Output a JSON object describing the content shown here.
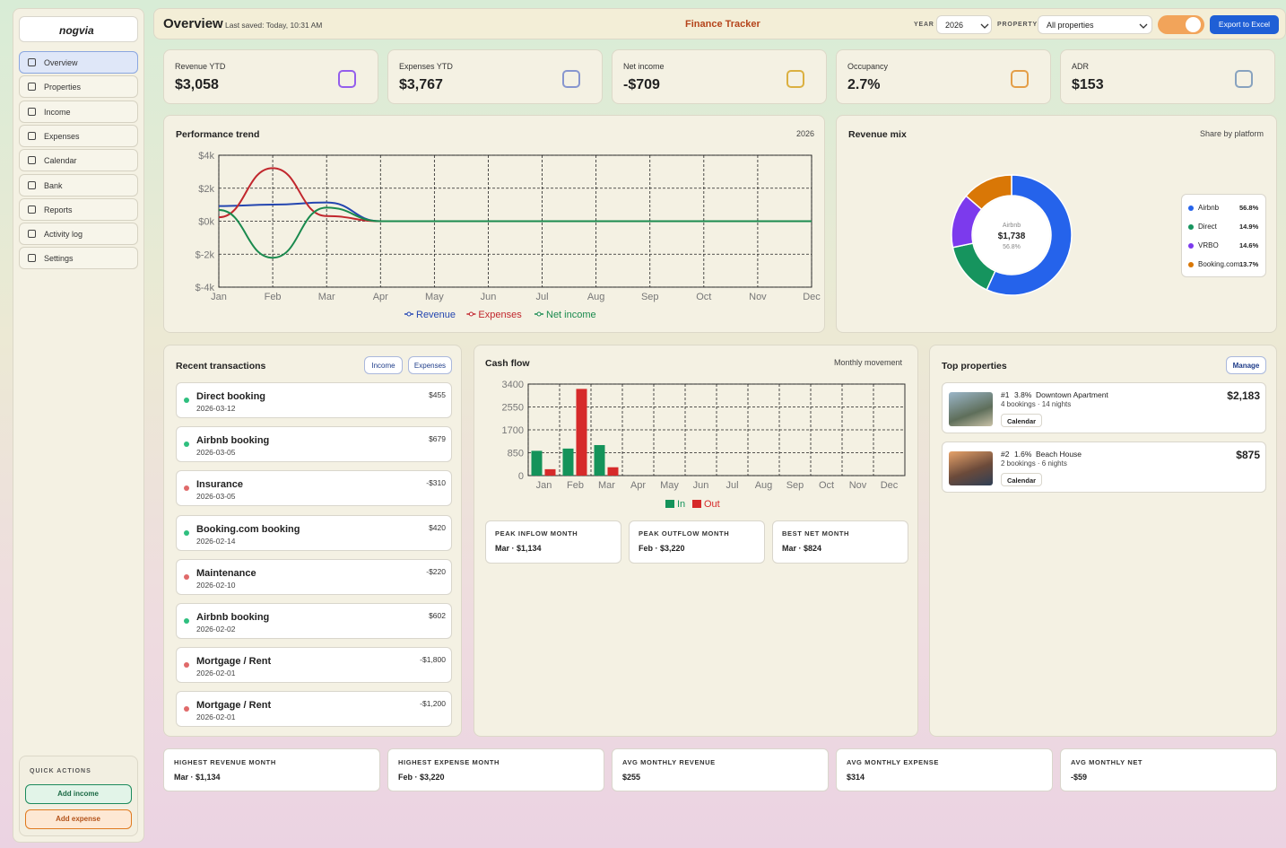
{
  "header": {
    "title": "Overview",
    "last_saved": "Last saved: Today, 10:31 AM",
    "app_name": "Finance Tracker",
    "year_label": "YEAR",
    "year": "2026",
    "property_label": "PROPERTY",
    "property": "All properties",
    "export": "Export to Excel"
  },
  "sidebar": {
    "logo": "nogvia",
    "nav": [
      "Overview",
      "Properties",
      "Income",
      "Expenses",
      "Calendar",
      "Bank",
      "Reports",
      "Activity log",
      "Settings"
    ],
    "quick_actions_title": "QUICK ACTIONS",
    "add_income": "Add income",
    "add_expense": "Add expense"
  },
  "kpis": [
    {
      "label": "Revenue YTD",
      "value": "$3,058"
    },
    {
      "label": "Expenses YTD",
      "value": "$3,767"
    },
    {
      "label": "Net income",
      "value": "-$709"
    },
    {
      "label": "Occupancy",
      "value": "2.7%"
    },
    {
      "label": "ADR",
      "value": "$153"
    }
  ],
  "chart_data": [
    {
      "type": "line",
      "title": "Performance trend",
      "subtitle": "2026",
      "categories": [
        "Jan",
        "Feb",
        "Mar",
        "Apr",
        "May",
        "Jun",
        "Jul",
        "Aug",
        "Sep",
        "Oct",
        "Nov",
        "Dec"
      ],
      "series": [
        {
          "name": "Revenue",
          "color": "#2446b0",
          "values": [
            920,
            1004,
            1134,
            0,
            0,
            0,
            0,
            0,
            0,
            0,
            0,
            0
          ]
        },
        {
          "name": "Expenses",
          "color": "#c1272d",
          "values": [
            237,
            3220,
            310,
            0,
            0,
            0,
            0,
            0,
            0,
            0,
            0,
            0
          ]
        },
        {
          "name": "Net income",
          "color": "#1a8a4e",
          "values": [
            683,
            -2216,
            824,
            0,
            0,
            0,
            0,
            0,
            0,
            0,
            0,
            0
          ]
        }
      ],
      "ylim": [
        -4000,
        4000
      ],
      "yticks": [
        {
          "value": -4000,
          "label": "$-4k"
        },
        {
          "value": -2000,
          "label": "$-2k"
        },
        {
          "value": 0,
          "label": "$0k"
        },
        {
          "value": 2000,
          "label": "$2k"
        },
        {
          "value": 4000,
          "label": "$4k"
        }
      ],
      "grid": true,
      "legend": "bottom"
    },
    {
      "type": "pie",
      "title": "Revenue mix",
      "subtitle": "Share by platform",
      "categories": [
        "Airbnb",
        "Direct",
        "VRBO",
        "Booking.com"
      ],
      "values": [
        56.8,
        14.9,
        14.6,
        13.7
      ],
      "value_labels": [
        "56.8%",
        "14.9%",
        "14.6%",
        "13.7%"
      ],
      "colors": [
        "#2563eb",
        "#16945e",
        "#7c3aed",
        "#d97706"
      ],
      "center": {
        "label": "Airbnb",
        "value": "$1,738",
        "share": "56.8%"
      },
      "legend": "right"
    },
    {
      "type": "bar",
      "title": "Cash flow",
      "subtitle": "Monthly movement",
      "categories": [
        "Jan",
        "Feb",
        "Mar",
        "Apr",
        "May",
        "Jun",
        "Jul",
        "Aug",
        "Sep",
        "Oct",
        "Nov",
        "Dec"
      ],
      "series": [
        {
          "name": "In",
          "color": "#14935a",
          "values": [
            920,
            1004,
            1134,
            0,
            0,
            0,
            0,
            0,
            0,
            0,
            0,
            0
          ]
        },
        {
          "name": "Out",
          "color": "#d62a2a",
          "values": [
            237,
            3220,
            310,
            0,
            0,
            0,
            0,
            0,
            0,
            0,
            0,
            0
          ]
        }
      ],
      "ylim": [
        0,
        3400
      ],
      "yticks": [
        0,
        850,
        1700,
        2550,
        3400
      ],
      "grid": true,
      "legend": "bottom"
    }
  ],
  "transactions": {
    "title": "Recent transactions",
    "filters": [
      "Income",
      "Expenses"
    ],
    "items": [
      {
        "name": "Direct booking",
        "date": "2026-03-12",
        "amount": "$455",
        "kind": "income"
      },
      {
        "name": "Airbnb booking",
        "date": "2026-03-05",
        "amount": "$679",
        "kind": "income"
      },
      {
        "name": "Insurance",
        "date": "2026-03-05",
        "amount": "-$310",
        "kind": "expense"
      },
      {
        "name": "Booking.com booking",
        "date": "2026-02-14",
        "amount": "$420",
        "kind": "income"
      },
      {
        "name": "Maintenance",
        "date": "2026-02-10",
        "amount": "-$220",
        "kind": "expense"
      },
      {
        "name": "Airbnb booking",
        "date": "2026-02-02",
        "amount": "$602",
        "kind": "income"
      },
      {
        "name": "Mortgage / Rent",
        "date": "2026-02-01",
        "amount": "-$1,800",
        "kind": "expense"
      },
      {
        "name": "Mortgage / Rent",
        "date": "2026-02-01",
        "amount": "-$1,200",
        "kind": "expense"
      }
    ]
  },
  "cash_flow_highlights": [
    {
      "label": "PEAK INFLOW MONTH",
      "value": "Mar · $1,134"
    },
    {
      "label": "PEAK OUTFLOW MONTH",
      "value": "Feb · $3,220"
    },
    {
      "label": "BEST NET MONTH",
      "value": "Mar · $824"
    }
  ],
  "top_properties": {
    "title": "Top properties",
    "manage": "Manage",
    "items": [
      {
        "rank": "#1",
        "share": "3.8%",
        "name": "Downtown Apartment",
        "details": "4 bookings · 14 nights",
        "action": "Calendar",
        "revenue": "$2,183"
      },
      {
        "rank": "#2",
        "share": "1.6%",
        "name": "Beach House",
        "details": "2 bookings · 6 nights",
        "action": "Calendar",
        "revenue": "$875"
      }
    ]
  },
  "summary": [
    {
      "label": "HIGHEST REVENUE MONTH",
      "value": "Mar · $1,134"
    },
    {
      "label": "HIGHEST EXPENSE MONTH",
      "value": "Feb · $3,220"
    },
    {
      "label": "AVG MONTHLY REVENUE",
      "value": "$255"
    },
    {
      "label": "AVG MONTHLY EXPENSE",
      "value": "$314"
    },
    {
      "label": "AVG MONTHLY NET",
      "value": "-$59"
    }
  ]
}
